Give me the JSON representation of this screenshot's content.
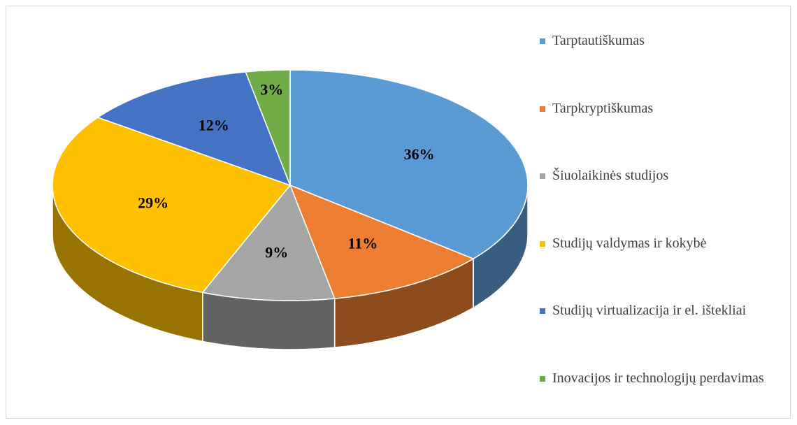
{
  "chart_data": {
    "type": "pie",
    "categories": [
      "Tarptautiškumas",
      "Tarpkryptiškumas",
      "Šiuolaikinės studijos",
      "Studijų valdymas ir kokybė",
      "Studijų virtualizacija ir el. ištekliai",
      "Inovacijos ir technologijų perdavimas"
    ],
    "values": [
      36,
      11,
      9,
      29,
      12,
      3
    ],
    "value_labels": [
      "36%",
      "11%",
      "9%",
      "29%",
      "12%",
      "3%"
    ],
    "colors": [
      "#5b9bd5",
      "#ed7d31",
      "#a5a5a5",
      "#ffc000",
      "#4472c4",
      "#70ad47"
    ],
    "legend": "right"
  }
}
